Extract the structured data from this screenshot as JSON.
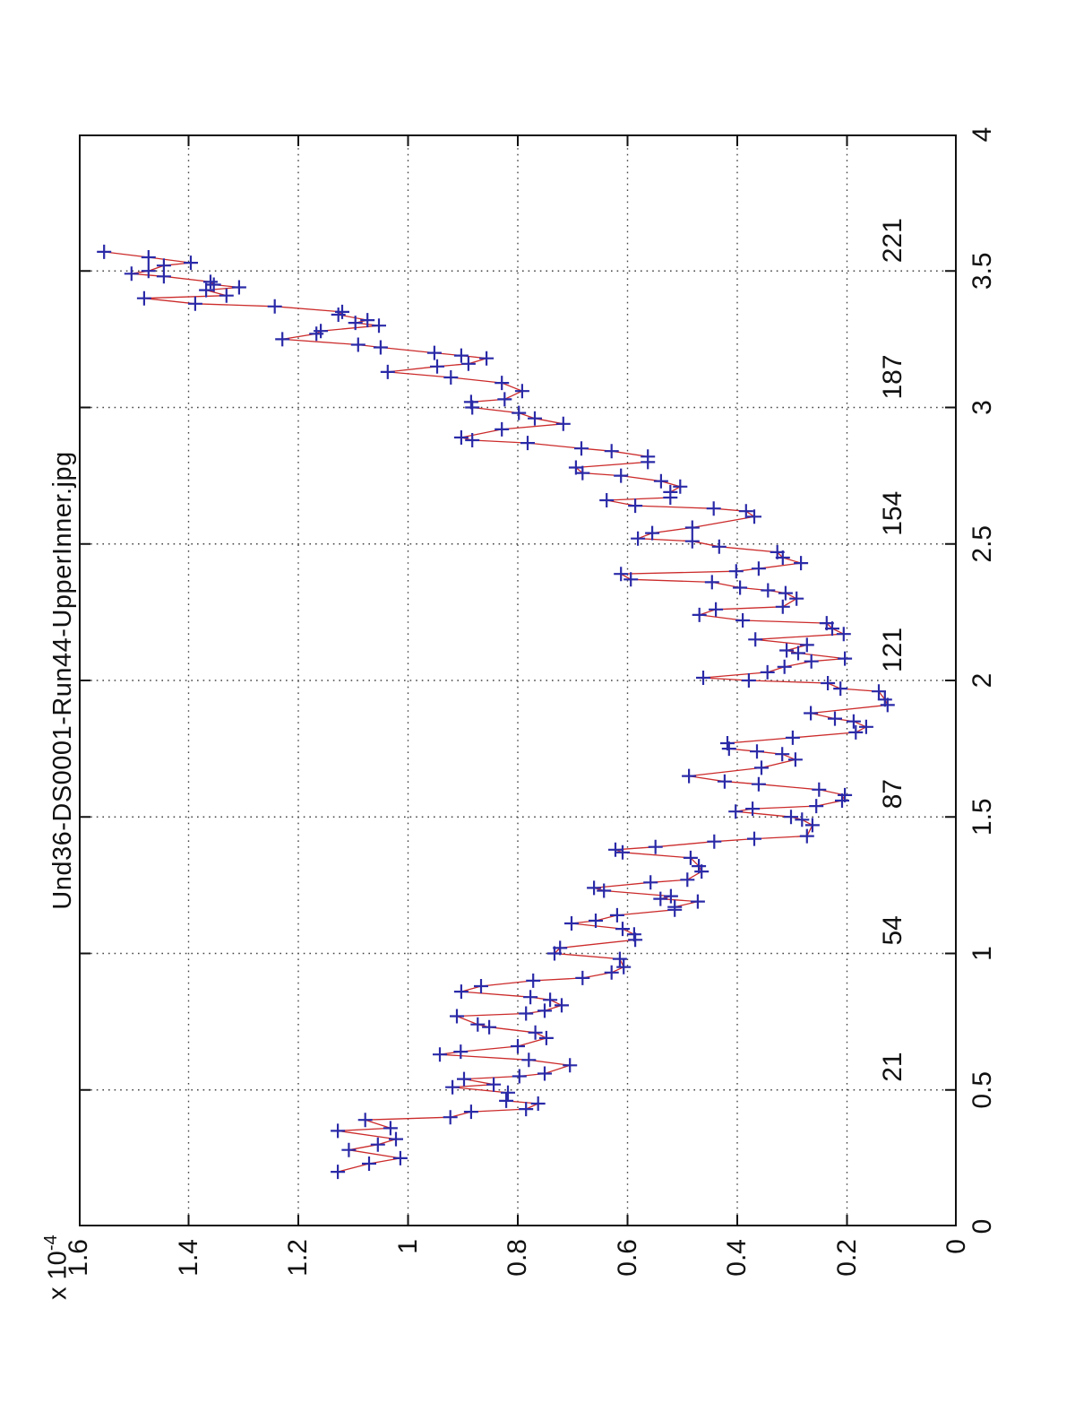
{
  "figure": {
    "title": "Und36-DS0001-Run44-UpperInner.jpg",
    "y_exponent_prefix": "x 10",
    "y_exponent": "-4",
    "background_color": "#ffffff",
    "rotation_note": "landscape MATLAB-style figure displayed rotated 90 degrees counter-clockwise on a portrait page"
  },
  "axes": {
    "xlim": [
      0,
      4
    ],
    "ylim": [
      0,
      1.6
    ],
    "x_tick_values": [
      0,
      0.5,
      1,
      1.5,
      2,
      2.5,
      3,
      3.5,
      4
    ],
    "x_tick_labels": [
      "0",
      "0.5",
      "1",
      "1.5",
      "2",
      "2.5",
      "3",
      "3.5",
      "4"
    ],
    "y_tick_values": [
      0,
      0.2,
      0.4,
      0.6,
      0.8,
      1,
      1.2,
      1.4,
      1.6
    ],
    "y_tick_labels": [
      "0",
      "0.2",
      "0.4",
      "0.6",
      "0.8",
      "1",
      "1.2",
      "1.4",
      "1.6"
    ],
    "grid": "dotted",
    "grid_color": "#444444",
    "axis_color": "#111111",
    "inner_labels": [
      {
        "x": 0.5,
        "text": "21"
      },
      {
        "x": 1.0,
        "text": "54"
      },
      {
        "x": 1.5,
        "text": "87"
      },
      {
        "x": 2.0,
        "text": "121"
      },
      {
        "x": 2.5,
        "text": "154"
      },
      {
        "x": 3.0,
        "text": "187"
      },
      {
        "x": 3.5,
        "text": "221"
      }
    ]
  },
  "chart_data": {
    "type": "line",
    "title": "Und36-DS0001-Run44-UpperInner.jpg",
    "xlabel": "",
    "ylabel": "",
    "y_scale_note": "y values are in units of 1e-4",
    "line_color": "#cc2b2b",
    "marker": "+",
    "marker_color": "#2a2aa8",
    "legend": "none",
    "points": [
      [
        0.2,
        1.128
      ],
      [
        0.23,
        1.071
      ],
      [
        0.25,
        1.014
      ],
      [
        0.28,
        1.108
      ],
      [
        0.3,
        1.055
      ],
      [
        0.32,
        1.022
      ],
      [
        0.35,
        1.128
      ],
      [
        0.36,
        1.032
      ],
      [
        0.39,
        1.078
      ],
      [
        0.4,
        0.923
      ],
      [
        0.42,
        0.885
      ],
      [
        0.43,
        0.785
      ],
      [
        0.45,
        0.763
      ],
      [
        0.46,
        0.821
      ],
      [
        0.49,
        0.818
      ],
      [
        0.51,
        0.919
      ],
      [
        0.52,
        0.844
      ],
      [
        0.54,
        0.898
      ],
      [
        0.55,
        0.797
      ],
      [
        0.56,
        0.751
      ],
      [
        0.59,
        0.705
      ],
      [
        0.61,
        0.78
      ],
      [
        0.63,
        0.942
      ],
      [
        0.64,
        0.904
      ],
      [
        0.66,
        0.8
      ],
      [
        0.69,
        0.748
      ],
      [
        0.71,
        0.768
      ],
      [
        0.73,
        0.852
      ],
      [
        0.74,
        0.873
      ],
      [
        0.77,
        0.911
      ],
      [
        0.78,
        0.785
      ],
      [
        0.79,
        0.751
      ],
      [
        0.81,
        0.72
      ],
      [
        0.83,
        0.741
      ],
      [
        0.84,
        0.777
      ],
      [
        0.86,
        0.903
      ],
      [
        0.88,
        0.867
      ],
      [
        0.9,
        0.772
      ],
      [
        0.91,
        0.682
      ],
      [
        0.93,
        0.629
      ],
      [
        0.95,
        0.607
      ],
      [
        0.98,
        0.614
      ],
      [
        1.0,
        0.733
      ],
      [
        1.02,
        0.723
      ],
      [
        1.05,
        0.586
      ],
      [
        1.07,
        0.588
      ],
      [
        1.09,
        0.609
      ],
      [
        1.11,
        0.702
      ],
      [
        1.12,
        0.658
      ],
      [
        1.14,
        0.619
      ],
      [
        1.16,
        0.514
      ],
      [
        1.17,
        0.514
      ],
      [
        1.19,
        0.472
      ],
      [
        1.2,
        0.54
      ],
      [
        1.21,
        0.521
      ],
      [
        1.23,
        0.643
      ],
      [
        1.24,
        0.661
      ],
      [
        1.26,
        0.558
      ],
      [
        1.27,
        0.491
      ],
      [
        1.3,
        0.465
      ],
      [
        1.32,
        0.47
      ],
      [
        1.35,
        0.485
      ],
      [
        1.37,
        0.609
      ],
      [
        1.38,
        0.622
      ],
      [
        1.39,
        0.549
      ],
      [
        1.41,
        0.442
      ],
      [
        1.42,
        0.369
      ],
      [
        1.43,
        0.273
      ],
      [
        1.47,
        0.263
      ],
      [
        1.49,
        0.282
      ],
      [
        1.5,
        0.302
      ],
      [
        1.52,
        0.403
      ],
      [
        1.53,
        0.372
      ],
      [
        1.54,
        0.256
      ],
      [
        1.56,
        0.209
      ],
      [
        1.58,
        0.204
      ],
      [
        1.6,
        0.251
      ],
      [
        1.62,
        0.361
      ],
      [
        1.63,
        0.423
      ],
      [
        1.65,
        0.488
      ],
      [
        1.68,
        0.356
      ],
      [
        1.71,
        0.294
      ],
      [
        1.73,
        0.318
      ],
      [
        1.74,
        0.364
      ],
      [
        1.75,
        0.415
      ],
      [
        1.77,
        0.418
      ],
      [
        1.79,
        0.299
      ],
      [
        1.81,
        0.184
      ],
      [
        1.83,
        0.165
      ],
      [
        1.85,
        0.188
      ],
      [
        1.86,
        0.222
      ],
      [
        1.88,
        0.266
      ],
      [
        1.91,
        0.126
      ],
      [
        1.93,
        0.131
      ],
      [
        1.96,
        0.142
      ],
      [
        1.97,
        0.212
      ],
      [
        1.99,
        0.235
      ],
      [
        2.0,
        0.379
      ],
      [
        2.01,
        0.462
      ],
      [
        2.03,
        0.345
      ],
      [
        2.05,
        0.314
      ],
      [
        2.07,
        0.265
      ],
      [
        2.08,
        0.204
      ],
      [
        2.1,
        0.289
      ],
      [
        2.11,
        0.31
      ],
      [
        2.13,
        0.273
      ],
      [
        2.15,
        0.367
      ],
      [
        2.17,
        0.206
      ],
      [
        2.19,
        0.227
      ],
      [
        2.21,
        0.237
      ],
      [
        2.22,
        0.39
      ],
      [
        2.24,
        0.469
      ],
      [
        2.26,
        0.439
      ],
      [
        2.27,
        0.317
      ],
      [
        2.3,
        0.292
      ],
      [
        2.32,
        0.312
      ],
      [
        2.33,
        0.344
      ],
      [
        2.34,
        0.395
      ],
      [
        2.36,
        0.446
      ],
      [
        2.37,
        0.594
      ],
      [
        2.39,
        0.612
      ],
      [
        2.4,
        0.402
      ],
      [
        2.41,
        0.361
      ],
      [
        2.43,
        0.284
      ],
      [
        2.45,
        0.317
      ],
      [
        2.47,
        0.327
      ],
      [
        2.49,
        0.433
      ],
      [
        2.51,
        0.482
      ],
      [
        2.52,
        0.581
      ],
      [
        2.54,
        0.555
      ],
      [
        2.56,
        0.482
      ],
      [
        2.6,
        0.369
      ],
      [
        2.62,
        0.384
      ],
      [
        2.63,
        0.443
      ],
      [
        2.64,
        0.586
      ],
      [
        2.66,
        0.638
      ],
      [
        2.67,
        0.522
      ],
      [
        2.69,
        0.522
      ],
      [
        2.71,
        0.504
      ],
      [
        2.73,
        0.539
      ],
      [
        2.75,
        0.612
      ],
      [
        2.76,
        0.682
      ],
      [
        2.78,
        0.694
      ],
      [
        2.8,
        0.563
      ],
      [
        2.82,
        0.563
      ],
      [
        2.84,
        0.629
      ],
      [
        2.85,
        0.684
      ],
      [
        2.87,
        0.782
      ],
      [
        2.88,
        0.883
      ],
      [
        2.89,
        0.903
      ],
      [
        2.92,
        0.829
      ],
      [
        2.94,
        0.717
      ],
      [
        2.96,
        0.769
      ],
      [
        2.98,
        0.798
      ],
      [
        3.0,
        0.883
      ],
      [
        3.02,
        0.885
      ],
      [
        3.03,
        0.824
      ],
      [
        3.06,
        0.792
      ],
      [
        3.09,
        0.829
      ],
      [
        3.11,
        0.922
      ],
      [
        3.13,
        1.037
      ],
      [
        3.15,
        0.947
      ],
      [
        3.16,
        0.89
      ],
      [
        3.18,
        0.857
      ],
      [
        3.19,
        0.903
      ],
      [
        3.2,
        0.952
      ],
      [
        3.22,
        1.05
      ],
      [
        3.23,
        1.091
      ],
      [
        3.25,
        1.229
      ],
      [
        3.27,
        1.167
      ],
      [
        3.28,
        1.159
      ],
      [
        3.3,
        1.053
      ],
      [
        3.31,
        1.096
      ],
      [
        3.32,
        1.074
      ],
      [
        3.34,
        1.127
      ],
      [
        3.35,
        1.12
      ],
      [
        3.37,
        1.243
      ],
      [
        3.38,
        1.388
      ],
      [
        3.4,
        1.481
      ],
      [
        3.41,
        1.331
      ],
      [
        3.43,
        1.368
      ],
      [
        3.44,
        1.308
      ],
      [
        3.45,
        1.354
      ],
      [
        3.46,
        1.36
      ],
      [
        3.48,
        1.445
      ],
      [
        3.49,
        1.504
      ],
      [
        3.5,
        1.473
      ],
      [
        3.52,
        1.445
      ],
      [
        3.53,
        1.396
      ],
      [
        3.55,
        1.473
      ],
      [
        3.57,
        1.554
      ]
    ]
  }
}
